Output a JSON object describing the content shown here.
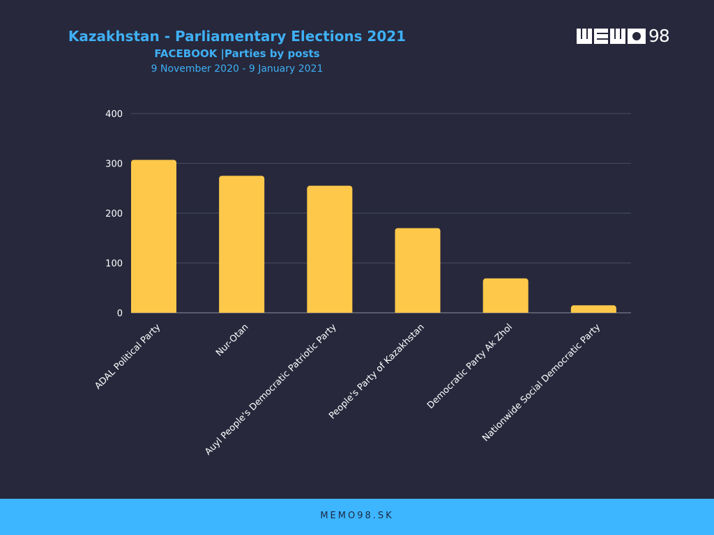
{
  "header": {
    "title": "Kazakhstan - Parliamentary Elections 2021",
    "subtitle": "FACEBOOK |Parties by posts",
    "daterange": "9 November 2020 - 9 January 2021"
  },
  "logo": {
    "text": "98",
    "icon": "memo98-logo"
  },
  "footer": {
    "text": "MEMO98.SK"
  },
  "colors": {
    "background": "#27283c",
    "bar": "#fec94a",
    "title": "#3fb0f5",
    "footer": "#3db5ff",
    "grid": "#4a4b5e"
  },
  "chart_data": {
    "type": "bar",
    "title": "",
    "xlabel": "",
    "ylabel": "",
    "ylim": [
      0,
      400
    ],
    "yticks": [
      0,
      100,
      200,
      300,
      400
    ],
    "grid": true,
    "categories": [
      "ADAL Political Party",
      "Nur-Otan",
      "Auyl People's Democratic Patriotic Party",
      "People's Party of Kazakhstan",
      "Democratic Party Ak Zhol",
      "Nationwide Social Democratic Party"
    ],
    "values": [
      307,
      275,
      255,
      170,
      69,
      15
    ]
  }
}
